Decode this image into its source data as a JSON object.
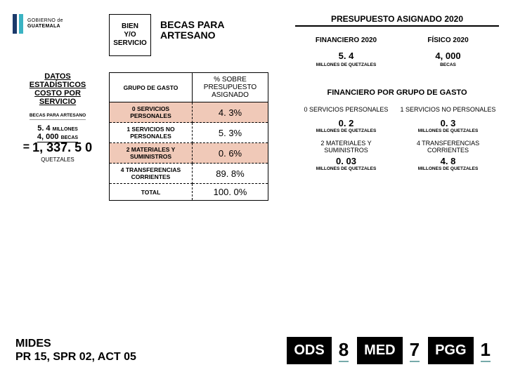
{
  "logo": {
    "line1": "GOBIERNO de",
    "line2": "GUATEMALA"
  },
  "bien_box": {
    "l1": "BIEN",
    "l2": "Y/O",
    "l3": "SERVICIO"
  },
  "title_main": "BECAS PARA ARTESANO",
  "datos": {
    "title": "DATOS ESTADÍSTICOS COSTO POR SERVICIO",
    "sub": "BECAS PARA ARTESANO",
    "row1_val": "5. 4",
    "row1_unit": "MILLONES",
    "row2_val": "4, 000",
    "row2_unit": "BECAS",
    "eq": "=",
    "big": "1, 337. 5 0",
    "q": "QUETZALES"
  },
  "table": {
    "h1": "GRUPO DE GASTO",
    "h2": "% SOBRE PRESUPUESTO ASIGNADO",
    "rows": [
      {
        "g": "0 SERVICIOS PERSONALES",
        "p": "4. 3%",
        "pink": true
      },
      {
        "g": "1 SERVICIOS NO PERSONALES",
        "p": "5. 3%",
        "pink": false
      },
      {
        "g": "2 MATERIALES Y SUMINISTROS",
        "p": "0. 6%",
        "pink": true
      },
      {
        "g": "4 TRANSFERENCIAS CORRIENTES",
        "p": "89. 8%",
        "pink": false
      },
      {
        "g": "TOTAL",
        "p": "100. 0%",
        "pink": false
      }
    ]
  },
  "presup": {
    "title": "PRESUPUESTO ASIGNADO 2020",
    "col1_h": "FINANCIERO 2020",
    "col1_v": "5. 4",
    "col1_u": "MILLONES DE QUETZALES",
    "col2_h": "FÍSICO 2020",
    "col2_v": "4, 000",
    "col2_u": "BECAS"
  },
  "fin": {
    "title": "FINANCIERO POR GRUPO DE GASTO",
    "cells": [
      {
        "lbl": "0 SERVICIOS PERSONALES",
        "val": "0. 2",
        "unit": "MILLONES DE QUETZALES"
      },
      {
        "lbl": "1 SERVICIOS NO PERSONALES",
        "val": "0. 3",
        "unit": "MILLONES DE QUETZALES"
      },
      {
        "lbl": "2 MATERIALES Y SUMINISTROS",
        "val": "0. 03",
        "unit": "MILLONES DE QUETZALES"
      },
      {
        "lbl": "4 TRANSFERENCIAS CORRIENTES",
        "val": "4. 8",
        "unit": "MILLONES DE QUETZALES"
      }
    ]
  },
  "footer": {
    "l1": "MIDES",
    "l2": "PR 15, SPR 02, ACT 05",
    "badges": [
      {
        "lab": "ODS",
        "num": "8"
      },
      {
        "lab": "MED",
        "num": "7"
      },
      {
        "lab": "PGG",
        "num": "1"
      }
    ]
  }
}
